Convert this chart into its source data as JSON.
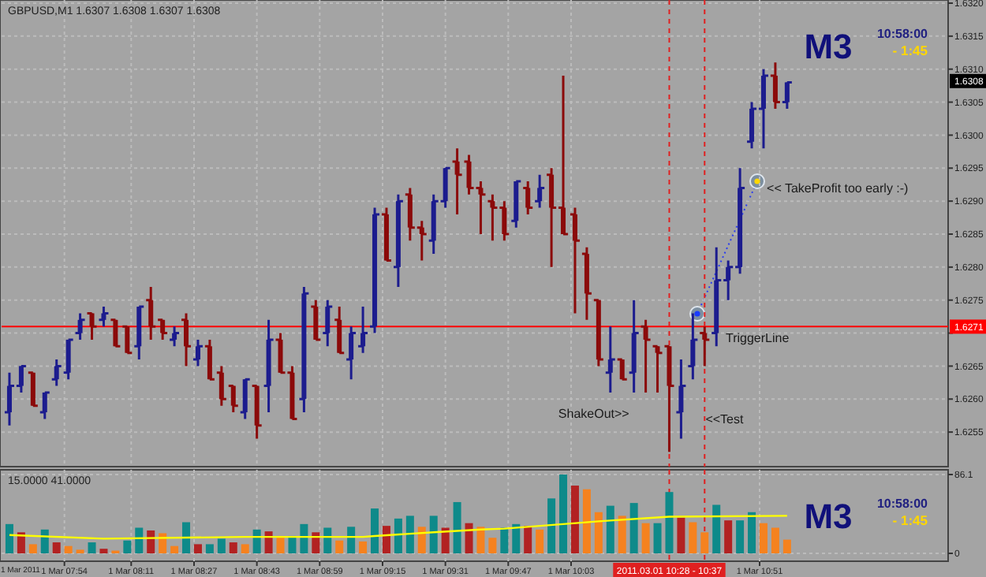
{
  "chart_data": [
    {
      "type": "candlestick",
      "title": "GBPUSD,M1  1.6307 1.6308 1.6307 1.6308",
      "x": [
        "2011-03-01T07:40",
        "2011-03-01T07:43",
        "2011-03-01T07:46",
        "2011-03-01T07:49",
        "2011-03-01T07:52",
        "2011-03-01T07:55",
        "2011-03-01T07:58",
        "2011-03-01T08:01",
        "2011-03-01T08:04",
        "2011-03-01T08:07",
        "2011-03-01T08:10",
        "2011-03-01T08:13",
        "2011-03-01T08:16",
        "2011-03-01T08:19",
        "2011-03-01T08:22",
        "2011-03-01T08:25",
        "2011-03-01T08:28",
        "2011-03-01T08:31",
        "2011-03-01T08:34",
        "2011-03-01T08:37",
        "2011-03-01T08:40",
        "2011-03-01T08:43",
        "2011-03-01T08:46",
        "2011-03-01T08:49",
        "2011-03-01T08:52",
        "2011-03-01T08:55",
        "2011-03-01T08:58",
        "2011-03-01T09:01",
        "2011-03-01T09:04",
        "2011-03-01T09:07",
        "2011-03-01T09:10",
        "2011-03-01T09:13",
        "2011-03-01T09:16",
        "2011-03-01T09:19",
        "2011-03-01T09:22",
        "2011-03-01T09:25",
        "2011-03-01T09:28",
        "2011-03-01T09:31",
        "2011-03-01T09:34",
        "2011-03-01T09:37",
        "2011-03-01T09:40",
        "2011-03-01T09:43",
        "2011-03-01T09:46",
        "2011-03-01T09:49",
        "2011-03-01T09:52",
        "2011-03-01T09:55",
        "2011-03-01T09:58",
        "2011-03-01T10:01",
        "2011-03-01T10:04",
        "2011-03-01T10:07",
        "2011-03-01T10:10",
        "2011-03-01T10:13",
        "2011-03-01T10:16",
        "2011-03-01T10:19",
        "2011-03-01T10:22",
        "2011-03-01T10:25",
        "2011-03-01T10:28",
        "2011-03-01T10:31",
        "2011-03-01T10:34",
        "2011-03-01T10:37",
        "2011-03-01T10:40",
        "2011-03-01T10:43",
        "2011-03-01T10:46",
        "2011-03-01T10:49",
        "2011-03-01T10:52",
        "2011-03-01T10:55",
        "2011-03-01T10:58"
      ],
      "ohlc": [
        [
          1.6258,
          1.6264,
          1.6256,
          1.6262
        ],
        [
          1.6262,
          1.6265,
          1.6261,
          1.6265
        ],
        [
          1.6264,
          1.6264,
          1.6259,
          1.6259
        ],
        [
          1.6258,
          1.6261,
          1.6257,
          1.6261
        ],
        [
          1.6263,
          1.6266,
          1.6262,
          1.6265
        ],
        [
          1.6264,
          1.6269,
          1.6263,
          1.6269
        ],
        [
          1.627,
          1.6273,
          1.6269,
          1.6272
        ],
        [
          1.6273,
          1.6273,
          1.6269,
          1.6271
        ],
        [
          1.6272,
          1.6274,
          1.6271,
          1.6273
        ],
        [
          1.6272,
          1.6272,
          1.6268,
          1.6268
        ],
        [
          1.6271,
          1.6271,
          1.6267,
          1.6267
        ],
        [
          1.6268,
          1.6274,
          1.6266,
          1.6274
        ],
        [
          1.6275,
          1.6277,
          1.6269,
          1.6271
        ],
        [
          1.6272,
          1.6272,
          1.6269,
          1.627
        ],
        [
          1.6269,
          1.6271,
          1.6268,
          1.627
        ],
        [
          1.6272,
          1.6273,
          1.6265,
          1.6268
        ],
        [
          1.6266,
          1.6269,
          1.6265,
          1.6268
        ],
        [
          1.6268,
          1.6269,
          1.6263,
          1.6263
        ],
        [
          1.6264,
          1.6265,
          1.6259,
          1.626
        ],
        [
          1.6262,
          1.6262,
          1.6258,
          1.6259
        ],
        [
          1.6258,
          1.6263,
          1.6257,
          1.6263
        ],
        [
          1.6262,
          1.6262,
          1.6254,
          1.6256
        ],
        [
          1.6262,
          1.6272,
          1.6258,
          1.6269
        ],
        [
          1.6269,
          1.627,
          1.6264,
          1.6264
        ],
        [
          1.6264,
          1.6265,
          1.6257,
          1.6257
        ],
        [
          1.626,
          1.6277,
          1.6258,
          1.6276
        ],
        [
          1.6274,
          1.6275,
          1.6269,
          1.6269
        ],
        [
          1.627,
          1.6275,
          1.6268,
          1.6274
        ],
        [
          1.6272,
          1.6274,
          1.6267,
          1.6267
        ],
        [
          1.6266,
          1.6271,
          1.6263,
          1.627
        ],
        [
          1.6268,
          1.6274,
          1.6267,
          1.627
        ],
        [
          1.6271,
          1.6289,
          1.627,
          1.6288
        ],
        [
          1.6288,
          1.6289,
          1.6281,
          1.6281
        ],
        [
          1.628,
          1.6291,
          1.6277,
          1.629
        ],
        [
          1.6291,
          1.6292,
          1.6284,
          1.6286
        ],
        [
          1.6286,
          1.6287,
          1.6281,
          1.6285
        ],
        [
          1.6284,
          1.6291,
          1.6282,
          1.629
        ],
        [
          1.629,
          1.6295,
          1.6289,
          1.6295
        ],
        [
          1.6296,
          1.6298,
          1.6288,
          1.6294
        ],
        [
          1.6296,
          1.6297,
          1.6291,
          1.6292
        ],
        [
          1.6292,
          1.6293,
          1.6285,
          1.6291
        ],
        [
          1.629,
          1.6291,
          1.6284,
          1.6289
        ],
        [
          1.6289,
          1.629,
          1.6284,
          1.6285
        ],
        [
          1.6287,
          1.6293,
          1.6286,
          1.6293
        ],
        [
          1.6292,
          1.6293,
          1.6288,
          1.6289
        ],
        [
          1.629,
          1.6294,
          1.6289,
          1.6292
        ],
        [
          1.6294,
          1.6295,
          1.628,
          1.6289
        ],
        [
          1.6289,
          1.6309,
          1.6285,
          1.6285
        ],
        [
          1.6288,
          1.6289,
          1.6273,
          1.6284
        ],
        [
          1.6282,
          1.6283,
          1.6272,
          1.6276
        ],
        [
          1.6275,
          1.6275,
          1.6265,
          1.6266
        ],
        [
          1.6264,
          1.6271,
          1.6261,
          1.6266
        ],
        [
          1.6266,
          1.6266,
          1.6263,
          1.6263
        ],
        [
          1.6264,
          1.6275,
          1.6261,
          1.627
        ],
        [
          1.6271,
          1.6272,
          1.6261,
          1.6269
        ],
        [
          1.6268,
          1.6268,
          1.6261,
          1.6267
        ],
        [
          1.6268,
          1.6268,
          1.6252,
          1.6262
        ],
        [
          1.6258,
          1.6266,
          1.6254,
          1.6262
        ],
        [
          1.6265,
          1.6273,
          1.6263,
          1.6269
        ],
        [
          1.627,
          1.6271,
          1.6265,
          1.6269
        ],
        [
          1.627,
          1.6283,
          1.6268,
          1.6278
        ],
        [
          1.6278,
          1.6281,
          1.6275,
          1.628
        ],
        [
          1.628,
          1.6295,
          1.6279,
          1.6292
        ],
        [
          1.6299,
          1.6305,
          1.6298,
          1.6304
        ],
        [
          1.6304,
          1.631,
          1.6298,
          1.6309
        ],
        [
          1.6309,
          1.6311,
          1.6304,
          1.6305
        ],
        [
          1.6305,
          1.6308,
          1.6304,
          1.6308
        ]
      ],
      "colors": [
        "#1c1c8e",
        "#1c1c8e",
        "#8b0a0a",
        "#1c1c8e",
        "#1c1c8e",
        "#1c1c8e",
        "#1c1c8e",
        "#8b0a0a",
        "#1c1c8e",
        "#8b0a0a",
        "#8b0a0a",
        "#1c1c8e",
        "#8b0a0a",
        "#8b0a0a",
        "#1c1c8e",
        "#8b0a0a",
        "#1c1c8e",
        "#8b0a0a",
        "#8b0a0a",
        "#8b0a0a",
        "#1c1c8e",
        "#8b0a0a",
        "#1c1c8e",
        "#8b0a0a",
        "#8b0a0a",
        "#1c1c8e",
        "#8b0a0a",
        "#1c1c8e",
        "#8b0a0a",
        "#1c1c8e",
        "#1c1c8e",
        "#1c1c8e",
        "#8b0a0a",
        "#1c1c8e",
        "#8b0a0a",
        "#8b0a0a",
        "#1c1c8e",
        "#1c1c8e",
        "#8b0a0a",
        "#8b0a0a",
        "#8b0a0a",
        "#8b0a0a",
        "#8b0a0a",
        "#1c1c8e",
        "#8b0a0a",
        "#1c1c8e",
        "#8b0a0a",
        "#8b0a0a",
        "#8b0a0a",
        "#8b0a0a",
        "#8b0a0a",
        "#1c1c8e",
        "#8b0a0a",
        "#1c1c8e",
        "#8b0a0a",
        "#8b0a0a",
        "#8b0a0a",
        "#1c1c8e",
        "#1c1c8e",
        "#8b0a0a",
        "#1c1c8e",
        "#1c1c8e",
        "#1c1c8e",
        "#1c1c8e",
        "#1c1c8e",
        "#8b0a0a",
        "#1c1c8e"
      ],
      "xlim": [
        "2011-03-01T07:38",
        "2011-03-01T11:39"
      ],
      "xticks": [
        "2011-03-01T07:54",
        "2011-03-01T08:11",
        "2011-03-01T08:27",
        "2011-03-01T08:43",
        "2011-03-01T08:59",
        "2011-03-01T09:15",
        "2011-03-01T09:31",
        "2011-03-01T09:47",
        "2011-03-01T10:03",
        "2011-03-01T10:51"
      ],
      "ylim": [
        1.625,
        1.632
      ],
      "yticks": [
        {
          "value": 1.6255,
          "label": "1.6255"
        },
        {
          "value": 1.626,
          "label": "1.6260"
        },
        {
          "value": 1.6265,
          "label": "1.6265"
        },
        {
          "value": 1.627,
          "label": null
        },
        {
          "value": 1.6275,
          "label": "1.6275"
        },
        {
          "value": 1.628,
          "label": "1.6280"
        },
        {
          "value": 1.6285,
          "label": "1.6285"
        },
        {
          "value": 1.629,
          "label": "1.6290"
        },
        {
          "value": 1.6295,
          "label": "1.6295"
        },
        {
          "value": 1.63,
          "label": "1.6300"
        },
        {
          "value": 1.6305,
          "label": "1.6305"
        },
        {
          "value": 1.631,
          "label": "1.6310"
        },
        {
          "value": 1.6315,
          "label": "1.6315"
        },
        {
          "value": 1.632,
          "label": "1.6320"
        }
      ],
      "tick_labels": "y",
      "grid": true,
      "ref_lines": [
        {
          "axis": "y",
          "value": 1.6271,
          "label": "TriggerLine",
          "color": "#ff0000",
          "line_style": "solid"
        },
        {
          "axis": "x",
          "value": "2011-03-01T10:28",
          "color": "#e02020",
          "line_style": "dashed"
        },
        {
          "axis": "x",
          "value": "2011-03-01T10:37",
          "color": "#e02020",
          "line_style": "dashed"
        }
      ],
      "annotations": [
        "M3",
        "10:58:00",
        "- 1:45",
        {
          "text": "<< TakeProfit too early :-)",
          "x": "2011-03-01T10:46",
          "y": 1.6292
        },
        {
          "text": "ShakeOut>>",
          "x": "2011-03-01T10:19",
          "y": 1.6261
        },
        {
          "text": "<<Test",
          "x": "2011-03-01T10:31",
          "y": 1.6254
        },
        "1.6308",
        "1.6271"
      ]
    },
    {
      "type": "bar",
      "title": "15.0000 41.0000",
      "x": [
        "2011-03-01T07:40",
        "2011-03-01T07:43",
        "2011-03-01T07:46",
        "2011-03-01T07:49",
        "2011-03-01T07:52",
        "2011-03-01T07:55",
        "2011-03-01T07:58",
        "2011-03-01T08:01",
        "2011-03-01T08:04",
        "2011-03-01T08:07",
        "2011-03-01T08:10",
        "2011-03-01T08:13",
        "2011-03-01T08:16",
        "2011-03-01T08:19",
        "2011-03-01T08:22",
        "2011-03-01T08:25",
        "2011-03-01T08:28",
        "2011-03-01T08:31",
        "2011-03-01T08:34",
        "2011-03-01T08:37",
        "2011-03-01T08:40",
        "2011-03-01T08:43",
        "2011-03-01T08:46",
        "2011-03-01T08:49",
        "2011-03-01T08:52",
        "2011-03-01T08:55",
        "2011-03-01T08:58",
        "2011-03-01T09:01",
        "2011-03-01T09:04",
        "2011-03-01T09:07",
        "2011-03-01T09:10",
        "2011-03-01T09:13",
        "2011-03-01T09:16",
        "2011-03-01T09:19",
        "2011-03-01T09:22",
        "2011-03-01T09:25",
        "2011-03-01T09:28",
        "2011-03-01T09:31",
        "2011-03-01T09:34",
        "2011-03-01T09:37",
        "2011-03-01T09:40",
        "2011-03-01T09:43",
        "2011-03-01T09:46",
        "2011-03-01T09:49",
        "2011-03-01T09:52",
        "2011-03-01T09:55",
        "2011-03-01T09:58",
        "2011-03-01T10:01",
        "2011-03-01T10:04",
        "2011-03-01T10:07",
        "2011-03-01T10:10",
        "2011-03-01T10:13",
        "2011-03-01T10:16",
        "2011-03-01T10:19",
        "2011-03-01T10:22",
        "2011-03-01T10:25",
        "2011-03-01T10:28",
        "2011-03-01T10:31",
        "2011-03-01T10:34",
        "2011-03-01T10:37",
        "2011-03-01T10:40",
        "2011-03-01T10:43",
        "2011-03-01T10:46",
        "2011-03-01T10:49",
        "2011-03-01T10:52",
        "2011-03-01T10:55",
        "2011-03-01T10:58"
      ],
      "series": [
        {
          "values": [
            32,
            23,
            10,
            26,
            12,
            8,
            4,
            12,
            5,
            3,
            14,
            28,
            25,
            22,
            8,
            34,
            10,
            10,
            16,
            12,
            10,
            26,
            24,
            19,
            19,
            32,
            23,
            28,
            14,
            29,
            13,
            49,
            30,
            38,
            41,
            29,
            41,
            28,
            56,
            33,
            29,
            17,
            28,
            32,
            30,
            26,
            60,
            86.1,
            74,
            70,
            45,
            52,
            41,
            55,
            33,
            33,
            67,
            39,
            34,
            23,
            53,
            36,
            36,
            45,
            33,
            28,
            15
          ],
          "colors": [
            "#0e8a8a",
            "#b22222",
            "#f5821f",
            "#0e8a8a",
            "#b22222",
            "#f5821f",
            "#f5821f",
            "#0e8a8a",
            "#b22222",
            "#f5821f",
            "#0e8a8a",
            "#0e8a8a",
            "#b22222",
            "#f5821f",
            "#f5821f",
            "#0e8a8a",
            "#b22222",
            "#0e8a8a",
            "#0e8a8a",
            "#b22222",
            "#f5821f",
            "#0e8a8a",
            "#b22222",
            "#f5821f",
            "#0e8a8a",
            "#0e8a8a",
            "#b22222",
            "#0e8a8a",
            "#f5821f",
            "#0e8a8a",
            "#f5821f",
            "#0e8a8a",
            "#b22222",
            "#0e8a8a",
            "#0e8a8a",
            "#f5821f",
            "#0e8a8a",
            "#b22222",
            "#0e8a8a",
            "#b22222",
            "#f5821f",
            "#f5821f",
            "#0e8a8a",
            "#0e8a8a",
            "#b22222",
            "#f5821f",
            "#0e8a8a",
            "#0e8a8a",
            "#b22222",
            "#f5821f",
            "#f5821f",
            "#0e8a8a",
            "#f5821f",
            "#0e8a8a",
            "#f5821f",
            "#0e8a8a",
            "#0e8a8a",
            "#b22222",
            "#f5821f",
            "#f5821f",
            "#0e8a8a",
            "#b22222",
            "#0e8a8a",
            "#0e8a8a",
            "#f5821f",
            "#f5821f",
            "#f5821f"
          ]
        },
        {
          "type": "line",
          "color": "#ffff00",
          "x": [
            "2011-03-01T07:40",
            "2011-03-01T08:04",
            "2011-03-01T08:40",
            "2011-03-01T09:10",
            "2011-03-01T09:13",
            "2011-03-01T09:28",
            "2011-03-01T09:40",
            "2011-03-01T09:46",
            "2011-03-01T10:01",
            "2011-03-01T10:10",
            "2011-03-01T10:28",
            "2011-03-01T10:58"
          ],
          "values": [
            20,
            16,
            18,
            18,
            19,
            23,
            26,
            27,
            32,
            35,
            40,
            41
          ]
        }
      ],
      "xlim": [
        "2011-03-01T07:38",
        "2011-03-01T11:39"
      ],
      "xticks": [
        {
          "value": "2011-03-01T07:54",
          "label": "1 Mar 07:54"
        },
        {
          "value": "2011-03-01T08:11",
          "label": "1 Mar 08:11"
        },
        {
          "value": "2011-03-01T08:27",
          "label": "1 Mar 08:27"
        },
        {
          "value": "2011-03-01T08:43",
          "label": "1 Mar 08:43"
        },
        {
          "value": "2011-03-01T08:59",
          "label": "1 Mar 08:59"
        },
        {
          "value": "2011-03-01T09:15",
          "label": "1 Mar 09:15"
        },
        {
          "value": "2011-03-01T09:31",
          "label": "1 Mar 09:31"
        },
        {
          "value": "2011-03-01T09:47",
          "label": "1 Mar 09:47"
        },
        {
          "value": "2011-03-01T10:03",
          "label": "1 Mar 10:03"
        },
        {
          "value": "2011-03-01T10:51",
          "label": "1 Mar 10:51"
        }
      ],
      "ylim": [
        0,
        86.1
      ],
      "yticks": [
        {
          "value": 0,
          "label": "0"
        },
        86.1
      ],
      "grid": true,
      "ref_lines": [
        {
          "axis": "x",
          "value": "2011-03-01T10:28",
          "color": "#e02020",
          "line_style": "dashed",
          "label": "2011.03.01 10:28 - 10:37"
        },
        {
          "axis": "x",
          "value": "2011-03-01T10:37",
          "color": "#e02020",
          "line_style": "dashed"
        }
      ],
      "annotations": [
        "M3",
        "10:58:00",
        "- 1:45",
        "1 Mar 2011"
      ]
    }
  ]
}
